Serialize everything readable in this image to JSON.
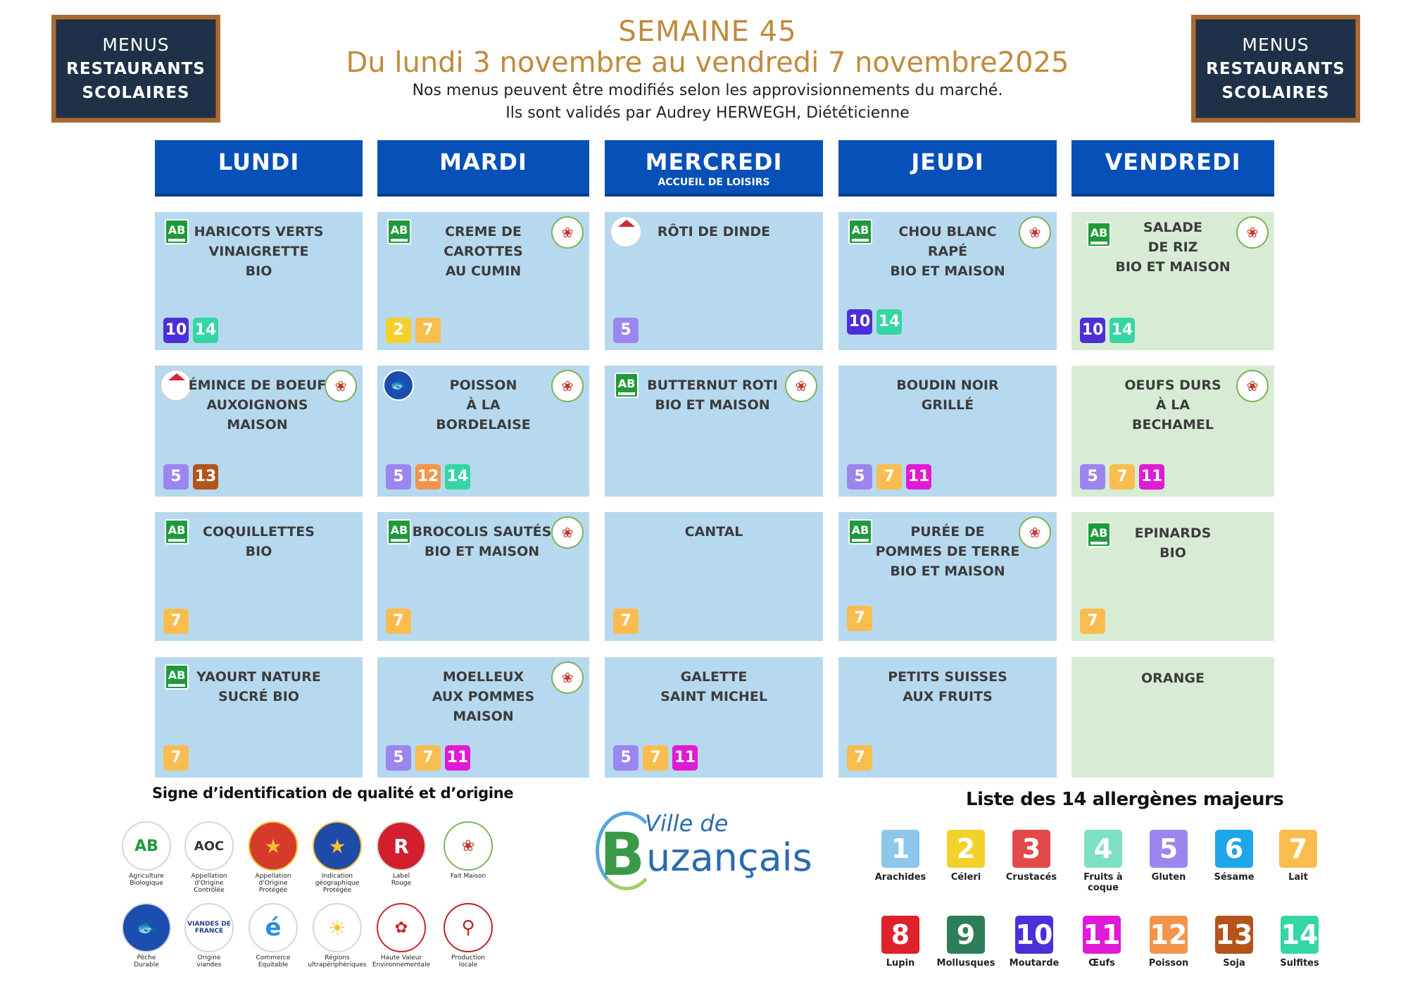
{
  "board": {
    "line1": "MENUS",
    "line2": "RESTAURANTS",
    "line3": "SCOLAIRES"
  },
  "header": {
    "week": "SEMAINE 45",
    "dates": "Du lundi 3 novembre au vendredi 7 novembre2025",
    "note1": "Nos menus peuvent être modifiés selon les approvisionnements du marché.",
    "note2": "Ils sont validés par Audrey HERWEGH, Diététicienne"
  },
  "days": [
    {
      "name": "LUNDI",
      "sub": ""
    },
    {
      "name": "MARDI",
      "sub": ""
    },
    {
      "name": "MERCREDI",
      "sub": "ACCUEIL DE LOISIRS"
    },
    {
      "name": "JEUDI",
      "sub": ""
    },
    {
      "name": "VENDREDI",
      "sub": ""
    }
  ],
  "menu": [
    [
      {
        "dish": "HARICOTS VERTS\nVINAIGRETTE\nBIO",
        "allergens": [
          10,
          14
        ]
      },
      {
        "dish": "ÉMINCE DE BOEUF\nAUXOIGNONS\nMAISON",
        "allergens": [
          5,
          13
        ]
      },
      {
        "dish": "COQUILLETTES\nBIO",
        "allergens": [
          7
        ]
      },
      {
        "dish": "YAOURT NATURE\nSUCRÉ BIO",
        "allergens": [
          7
        ]
      }
    ],
    [
      {
        "dish": "CREME DE\nCAROTTES\nAU CUMIN",
        "allergens": [
          2,
          7
        ]
      },
      {
        "dish": "POISSON\nÀ LA\nBORDELAISE",
        "allergens": [
          5,
          12,
          14
        ]
      },
      {
        "dish": "BROCOLIS SAUTÉS\nBIO ET MAISON",
        "allergens": [
          7
        ]
      },
      {
        "dish": "MOELLEUX\nAUX POMMES\nMAISON",
        "allergens": [
          5,
          7,
          11
        ]
      }
    ],
    [
      {
        "dish": "RÔTI DE DINDE",
        "allergens": [
          5
        ]
      },
      {
        "dish": "BUTTERNUT ROTI\nBIO ET MAISON",
        "allergens": []
      },
      {
        "dish": "CANTAL",
        "allergens": [
          7
        ]
      },
      {
        "dish": "GALETTE\nSAINT MICHEL",
        "allergens": [
          5,
          7,
          11
        ]
      }
    ],
    [
      {
        "dish": "CHOU BLANC\nRAPÉ\nBIO ET MAISON",
        "allergens": [
          10,
          14
        ]
      },
      {
        "dish": "BOUDIN NOIR\nGRILLÉ",
        "allergens": [
          5,
          7,
          11
        ]
      },
      {
        "dish": "PURÉE DE\nPOMMES DE TERRE\nBIO ET MAISON",
        "allergens": [
          7
        ]
      },
      {
        "dish": "PETITS SUISSES\nAUX FRUITS",
        "allergens": [
          7
        ]
      }
    ],
    [
      {
        "dish": "SALADE\nDE RIZ\nBIO ET MAISON",
        "allergens": [
          10,
          14
        ]
      },
      {
        "dish": "OEUFS DURS\nÀ LA\nBECHAMEL",
        "allergens": [
          5,
          7,
          11
        ]
      },
      {
        "dish": "EPINARDS\nBIO",
        "allergens": [
          7
        ]
      },
      {
        "dish": "ORANGE",
        "allergens": []
      }
    ]
  ],
  "icons": {
    "ab_text": "AB",
    "vf_text": "VIANDES DE FRANCE"
  },
  "quality": {
    "title": "Signe d’identification de qualité et d’origine",
    "signs": [
      {
        "label": "Agriculture\nBiologique",
        "icon": "AB"
      },
      {
        "label": "Appellation\nd'Origine\nContrôlée",
        "icon": "AOC"
      },
      {
        "label": "Appellation\nd'Origine\nProtégée",
        "icon": ""
      },
      {
        "label": "Indication\ngéographique\nProtégée",
        "icon": ""
      },
      {
        "label": "Label\nRouge",
        "icon": "R"
      },
      {
        "label": "Fait Maison",
        "icon": ""
      },
      {
        "label": "Pêche\nDurable",
        "icon": ""
      },
      {
        "label": "Origine\nviandes",
        "icon": ""
      },
      {
        "label": "Commerce\nEquitable",
        "icon": "é"
      },
      {
        "label": "Régions\nultrapériphériques",
        "icon": ""
      },
      {
        "label": "Haute Valeur\nEnvironnementale",
        "icon": ""
      },
      {
        "label": "Production\nlocale",
        "icon": ""
      }
    ]
  },
  "town": {
    "ville": "Ville de",
    "b": "B",
    "rest": "uzançais"
  },
  "allergen_legend": {
    "title": "Liste des 14 allergènes majeurs",
    "items": [
      {
        "num": "1",
        "name": "Arachides"
      },
      {
        "num": "2",
        "name": "Céleri"
      },
      {
        "num": "3",
        "name": "Crustacés"
      },
      {
        "num": "4",
        "name": "Fruits à coque"
      },
      {
        "num": "5",
        "name": "Gluten"
      },
      {
        "num": "6",
        "name": "Sésame"
      },
      {
        "num": "7",
        "name": "Lait"
      },
      {
        "num": "8",
        "name": "Lupin"
      },
      {
        "num": "9",
        "name": "Mollusques"
      },
      {
        "num": "10",
        "name": "Moutarde"
      },
      {
        "num": "11",
        "name": "Œufs"
      },
      {
        "num": "12",
        "name": "Poisson"
      },
      {
        "num": "13",
        "name": "Soja"
      },
      {
        "num": "14",
        "name": "Sulfites"
      }
    ]
  }
}
